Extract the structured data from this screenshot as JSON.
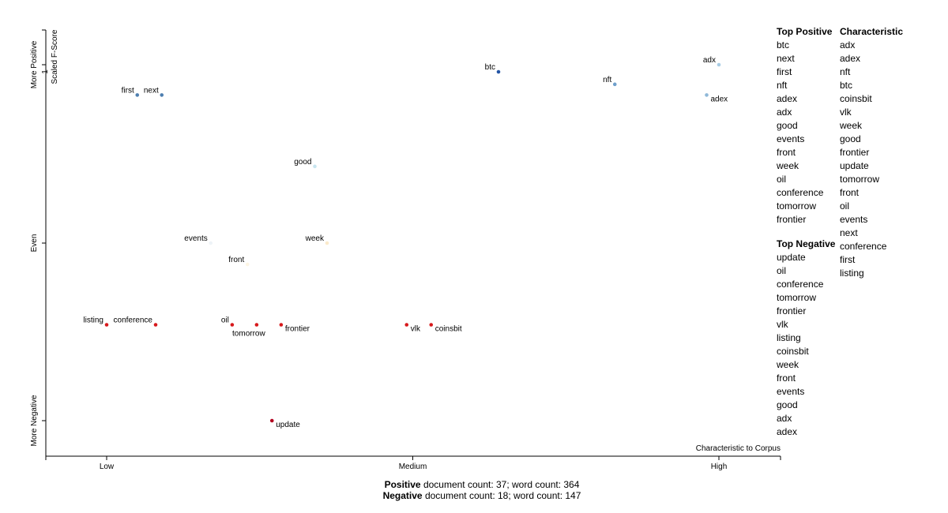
{
  "chart_data": {
    "type": "scatter",
    "x_axis": {
      "ticks": [
        {
          "label": "Low",
          "value": 0
        },
        {
          "label": "Medium",
          "value": 0.5
        },
        {
          "label": "High",
          "value": 1
        }
      ],
      "corner_label": "Characteristic to Corpus"
    },
    "y_axis": {
      "title": "Scaled F-Score",
      "ticks": [
        {
          "label": "More Positive",
          "value": 1
        },
        {
          "label": "Even",
          "value": 0
        },
        {
          "label": "More Negative",
          "value": -1
        }
      ],
      "tick_glyph": "1"
    },
    "points": [
      {
        "term": "first",
        "x": 0.05,
        "y": 0.83,
        "color": "#4e7fb0",
        "label_side": "left",
        "label_dy": 0
      },
      {
        "term": "next",
        "x": 0.09,
        "y": 0.83,
        "color": "#4e7fb0",
        "label_side": "left",
        "label_dy": 0
      },
      {
        "term": "btc",
        "x": 0.64,
        "y": 0.96,
        "color": "#2455a5",
        "label_side": "left",
        "label_dy": 0
      },
      {
        "term": "nft",
        "x": 0.83,
        "y": 0.89,
        "color": "#6e9fcb",
        "label_side": "left",
        "label_dy": 0
      },
      {
        "term": "adx",
        "x": 1.0,
        "y": 1.0,
        "color": "#a8cce4",
        "label_side": "left",
        "label_dy": 0
      },
      {
        "term": "adex",
        "x": 0.98,
        "y": 0.83,
        "color": "#8fb8d8",
        "label_side": "right",
        "label_dy": 8
      },
      {
        "term": "good",
        "x": 0.34,
        "y": 0.43,
        "color": "#c7e4ef",
        "label_side": "left",
        "label_dy": 0
      },
      {
        "term": "events",
        "x": 0.17,
        "y": 0.0,
        "color": "#eef3f7",
        "label_side": "left",
        "label_dy": 0
      },
      {
        "term": "week",
        "x": 0.36,
        "y": 0.0,
        "color": "#fbeacb",
        "label_side": "left",
        "label_dy": 0
      },
      {
        "term": "front",
        "x": 0.23,
        "y": -0.12,
        "color": "#fdf5e4",
        "label_side": "left",
        "label_dy": 0
      },
      {
        "term": "listing",
        "x": 0.0,
        "y": -0.46,
        "color": "#d7191c",
        "label_side": "left",
        "label_dy": 0
      },
      {
        "term": "conference",
        "x": 0.08,
        "y": -0.46,
        "color": "#d7191c",
        "label_side": "left",
        "label_dy": 0
      },
      {
        "term": "oil",
        "x": 0.205,
        "y": -0.46,
        "color": "#d7191c",
        "label_side": "left",
        "label_dy": 0
      },
      {
        "term": "tomorrow",
        "x": 0.245,
        "y": -0.46,
        "color": "#d7191c",
        "label_side": "below",
        "label_dy": 14
      },
      {
        "term": "frontier",
        "x": 0.285,
        "y": -0.46,
        "color": "#d7191c",
        "label_side": "right",
        "label_dy": 8
      },
      {
        "term": "vlk",
        "x": 0.49,
        "y": -0.46,
        "color": "#d7191c",
        "label_side": "right",
        "label_dy": 8
      },
      {
        "term": "coinsbit",
        "x": 0.53,
        "y": -0.46,
        "color": "#d7191c",
        "label_side": "right",
        "label_dy": 8
      },
      {
        "term": "update",
        "x": 0.27,
        "y": -1.0,
        "color": "#b3001e",
        "label_side": "right",
        "label_dy": 8
      }
    ]
  },
  "lists": {
    "top_positive": {
      "heading": "Top Positive",
      "items": [
        "btc",
        "next",
        "first",
        "nft",
        "adex",
        "adx",
        "good",
        "events",
        "front",
        "week",
        "oil",
        "conference",
        "tomorrow",
        "frontier"
      ]
    },
    "top_negative": {
      "heading": "Top Negative",
      "items": [
        "update",
        "oil",
        "conference",
        "tomorrow",
        "frontier",
        "vlk",
        "listing",
        "coinsbit",
        "week",
        "front",
        "events",
        "good",
        "adx",
        "adex"
      ]
    },
    "characteristic": {
      "heading": "Characteristic",
      "items": [
        "adx",
        "adex",
        "nft",
        "btc",
        "coinsbit",
        "vlk",
        "week",
        "good",
        "frontier",
        "update",
        "tomorrow",
        "front",
        "oil",
        "events",
        "next",
        "conference",
        "first",
        "listing"
      ]
    }
  },
  "footer": {
    "positive_label": "Positive",
    "positive_text": " document count: 37; word count: 364",
    "negative_label": "Negative",
    "negative_text": " document count: 18; word count: 147"
  }
}
